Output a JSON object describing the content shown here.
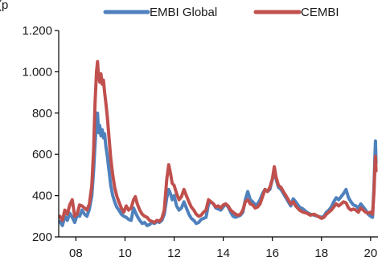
{
  "chart_data": {
    "type": "line",
    "title": "",
    "xlabel": "",
    "ylabel": "",
    "unit_label_fragment": "(p",
    "grid": false,
    "legend_position": "top",
    "xlim": [
      2007.3,
      2020.3
    ],
    "ylim": [
      200,
      1200
    ],
    "x_ticks": [
      {
        "value": 2008,
        "label": "08"
      },
      {
        "value": 2010,
        "label": "10"
      },
      {
        "value": 2012,
        "label": "12"
      },
      {
        "value": 2014,
        "label": "14"
      },
      {
        "value": 2016,
        "label": "16"
      },
      {
        "value": 2018,
        "label": "18"
      },
      {
        "value": 2020,
        "label": "20"
      }
    ],
    "y_ticks": [
      {
        "value": 200,
        "label": "200"
      },
      {
        "value": 400,
        "label": "400"
      },
      {
        "value": 600,
        "label": "600"
      },
      {
        "value": 800,
        "label": "800"
      },
      {
        "value": 1000,
        "label": "1.000"
      },
      {
        "value": 1200,
        "label": "1.200"
      }
    ],
    "series": [
      {
        "name": "EMBI Global",
        "color": "#4f81bd",
        "points": [
          [
            2007.35,
            275
          ],
          [
            2007.45,
            255
          ],
          [
            2007.55,
            300
          ],
          [
            2007.65,
            280
          ],
          [
            2007.75,
            315
          ],
          [
            2007.85,
            295
          ],
          [
            2007.95,
            270
          ],
          [
            2008.05,
            305
          ],
          [
            2008.15,
            300
          ],
          [
            2008.25,
            330
          ],
          [
            2008.35,
            310
          ],
          [
            2008.45,
            300
          ],
          [
            2008.55,
            335
          ],
          [
            2008.65,
            400
          ],
          [
            2008.72,
            520
          ],
          [
            2008.78,
            650
          ],
          [
            2008.84,
            760
          ],
          [
            2008.88,
            800
          ],
          [
            2008.92,
            705
          ],
          [
            2008.97,
            740
          ],
          [
            2009.02,
            690
          ],
          [
            2009.07,
            720
          ],
          [
            2009.12,
            680
          ],
          [
            2009.17,
            700
          ],
          [
            2009.22,
            640
          ],
          [
            2009.28,
            590
          ],
          [
            2009.35,
            520
          ],
          [
            2009.42,
            450
          ],
          [
            2009.5,
            400
          ],
          [
            2009.58,
            370
          ],
          [
            2009.66,
            345
          ],
          [
            2009.75,
            330
          ],
          [
            2009.85,
            310
          ],
          [
            2009.95,
            300
          ],
          [
            2010.05,
            295
          ],
          [
            2010.15,
            285
          ],
          [
            2010.25,
            280
          ],
          [
            2010.35,
            340
          ],
          [
            2010.42,
            320
          ],
          [
            2010.5,
            300
          ],
          [
            2010.6,
            280
          ],
          [
            2010.7,
            265
          ],
          [
            2010.8,
            270
          ],
          [
            2010.9,
            255
          ],
          [
            2011.0,
            260
          ],
          [
            2011.1,
            270
          ],
          [
            2011.2,
            265
          ],
          [
            2011.3,
            275
          ],
          [
            2011.4,
            270
          ],
          [
            2011.5,
            280
          ],
          [
            2011.6,
            310
          ],
          [
            2011.7,
            390
          ],
          [
            2011.78,
            430
          ],
          [
            2011.85,
            410
          ],
          [
            2011.92,
            380
          ],
          [
            2012.0,
            400
          ],
          [
            2012.1,
            350
          ],
          [
            2012.2,
            330
          ],
          [
            2012.3,
            340
          ],
          [
            2012.4,
            370
          ],
          [
            2012.5,
            340
          ],
          [
            2012.6,
            310
          ],
          [
            2012.7,
            290
          ],
          [
            2012.8,
            280
          ],
          [
            2012.9,
            265
          ],
          [
            2013.0,
            270
          ],
          [
            2013.1,
            285
          ],
          [
            2013.2,
            290
          ],
          [
            2013.3,
            295
          ],
          [
            2013.4,
            360
          ],
          [
            2013.5,
            370
          ],
          [
            2013.6,
            360
          ],
          [
            2013.7,
            340
          ],
          [
            2013.8,
            335
          ],
          [
            2013.9,
            330
          ],
          [
            2014.0,
            345
          ],
          [
            2014.1,
            360
          ],
          [
            2014.2,
            345
          ],
          [
            2014.3,
            320
          ],
          [
            2014.4,
            300
          ],
          [
            2014.5,
            295
          ],
          [
            2014.6,
            300
          ],
          [
            2014.7,
            305
          ],
          [
            2014.8,
            320
          ],
          [
            2014.9,
            380
          ],
          [
            2015.0,
            420
          ],
          [
            2015.1,
            380
          ],
          [
            2015.2,
            370
          ],
          [
            2015.3,
            355
          ],
          [
            2015.4,
            360
          ],
          [
            2015.5,
            380
          ],
          [
            2015.6,
            410
          ],
          [
            2015.7,
            430
          ],
          [
            2015.8,
            420
          ],
          [
            2015.9,
            430
          ],
          [
            2016.0,
            480
          ],
          [
            2016.08,
            520
          ],
          [
            2016.15,
            480
          ],
          [
            2016.25,
            440
          ],
          [
            2016.35,
            430
          ],
          [
            2016.45,
            410
          ],
          [
            2016.55,
            390
          ],
          [
            2016.65,
            370
          ],
          [
            2016.75,
            350
          ],
          [
            2016.85,
            385
          ],
          [
            2016.95,
            370
          ],
          [
            2017.1,
            345
          ],
          [
            2017.25,
            335
          ],
          [
            2017.4,
            320
          ],
          [
            2017.55,
            310
          ],
          [
            2017.7,
            305
          ],
          [
            2017.85,
            300
          ],
          [
            2018.0,
            295
          ],
          [
            2018.1,
            300
          ],
          [
            2018.2,
            320
          ],
          [
            2018.3,
            330
          ],
          [
            2018.4,
            345
          ],
          [
            2018.5,
            370
          ],
          [
            2018.6,
            390
          ],
          [
            2018.7,
            380
          ],
          [
            2018.8,
            395
          ],
          [
            2018.9,
            410
          ],
          [
            2019.0,
            430
          ],
          [
            2019.1,
            390
          ],
          [
            2019.2,
            370
          ],
          [
            2019.3,
            355
          ],
          [
            2019.4,
            350
          ],
          [
            2019.5,
            340
          ],
          [
            2019.6,
            360
          ],
          [
            2019.7,
            345
          ],
          [
            2019.8,
            330
          ],
          [
            2019.9,
            310
          ],
          [
            2020.0,
            300
          ],
          [
            2020.08,
            295
          ],
          [
            2020.14,
            450
          ],
          [
            2020.18,
            600
          ],
          [
            2020.2,
            665
          ],
          [
            2020.22,
            560
          ]
        ]
      },
      {
        "name": "CEMBI",
        "color": "#c0504d",
        "points": [
          [
            2007.35,
            300
          ],
          [
            2007.45,
            280
          ],
          [
            2007.55,
            330
          ],
          [
            2007.65,
            310
          ],
          [
            2007.75,
            355
          ],
          [
            2007.85,
            380
          ],
          [
            2007.95,
            300
          ],
          [
            2008.05,
            310
          ],
          [
            2008.15,
            355
          ],
          [
            2008.25,
            350
          ],
          [
            2008.35,
            340
          ],
          [
            2008.45,
            330
          ],
          [
            2008.55,
            360
          ],
          [
            2008.65,
            450
          ],
          [
            2008.72,
            620
          ],
          [
            2008.78,
            850
          ],
          [
            2008.84,
            1000
          ],
          [
            2008.88,
            1050
          ],
          [
            2008.92,
            980
          ],
          [
            2008.97,
            950
          ],
          [
            2009.02,
            990
          ],
          [
            2009.07,
            940
          ],
          [
            2009.12,
            960
          ],
          [
            2009.17,
            900
          ],
          [
            2009.22,
            850
          ],
          [
            2009.28,
            780
          ],
          [
            2009.35,
            680
          ],
          [
            2009.42,
            580
          ],
          [
            2009.5,
            500
          ],
          [
            2009.58,
            440
          ],
          [
            2009.66,
            400
          ],
          [
            2009.75,
            370
          ],
          [
            2009.85,
            340
          ],
          [
            2009.95,
            320
          ],
          [
            2010.05,
            350
          ],
          [
            2010.15,
            330
          ],
          [
            2010.25,
            340
          ],
          [
            2010.35,
            380
          ],
          [
            2010.42,
            395
          ],
          [
            2010.5,
            360
          ],
          [
            2010.6,
            330
          ],
          [
            2010.7,
            310
          ],
          [
            2010.8,
            300
          ],
          [
            2010.9,
            295
          ],
          [
            2011.0,
            280
          ],
          [
            2011.1,
            275
          ],
          [
            2011.2,
            270
          ],
          [
            2011.3,
            280
          ],
          [
            2011.4,
            275
          ],
          [
            2011.5,
            290
          ],
          [
            2011.6,
            330
          ],
          [
            2011.7,
            480
          ],
          [
            2011.78,
            550
          ],
          [
            2011.85,
            510
          ],
          [
            2011.92,
            460
          ],
          [
            2012.0,
            450
          ],
          [
            2012.1,
            410
          ],
          [
            2012.2,
            380
          ],
          [
            2012.3,
            395
          ],
          [
            2012.4,
            430
          ],
          [
            2012.5,
            400
          ],
          [
            2012.6,
            370
          ],
          [
            2012.7,
            345
          ],
          [
            2012.8,
            330
          ],
          [
            2012.9,
            310
          ],
          [
            2013.0,
            300
          ],
          [
            2013.1,
            305
          ],
          [
            2013.2,
            320
          ],
          [
            2013.3,
            330
          ],
          [
            2013.4,
            380
          ],
          [
            2013.5,
            370
          ],
          [
            2013.6,
            360
          ],
          [
            2013.7,
            345
          ],
          [
            2013.8,
            350
          ],
          [
            2013.9,
            340
          ],
          [
            2014.0,
            355
          ],
          [
            2014.1,
            360
          ],
          [
            2014.2,
            350
          ],
          [
            2014.3,
            330
          ],
          [
            2014.4,
            320
          ],
          [
            2014.5,
            310
          ],
          [
            2014.6,
            305
          ],
          [
            2014.7,
            310
          ],
          [
            2014.8,
            330
          ],
          [
            2014.9,
            370
          ],
          [
            2015.0,
            380
          ],
          [
            2015.1,
            360
          ],
          [
            2015.2,
            355
          ],
          [
            2015.3,
            340
          ],
          [
            2015.4,
            345
          ],
          [
            2015.5,
            360
          ],
          [
            2015.6,
            395
          ],
          [
            2015.7,
            430
          ],
          [
            2015.8,
            420
          ],
          [
            2015.9,
            440
          ],
          [
            2016.0,
            480
          ],
          [
            2016.08,
            540
          ],
          [
            2016.15,
            490
          ],
          [
            2016.25,
            450
          ],
          [
            2016.35,
            440
          ],
          [
            2016.45,
            420
          ],
          [
            2016.55,
            400
          ],
          [
            2016.65,
            380
          ],
          [
            2016.75,
            360
          ],
          [
            2016.85,
            370
          ],
          [
            2016.95,
            350
          ],
          [
            2017.1,
            330
          ],
          [
            2017.25,
            320
          ],
          [
            2017.4,
            315
          ],
          [
            2017.55,
            305
          ],
          [
            2017.7,
            310
          ],
          [
            2017.85,
            300
          ],
          [
            2018.0,
            290
          ],
          [
            2018.1,
            295
          ],
          [
            2018.2,
            310
          ],
          [
            2018.3,
            320
          ],
          [
            2018.4,
            330
          ],
          [
            2018.5,
            345
          ],
          [
            2018.6,
            360
          ],
          [
            2018.7,
            350
          ],
          [
            2018.8,
            360
          ],
          [
            2018.9,
            370
          ],
          [
            2019.0,
            365
          ],
          [
            2019.1,
            340
          ],
          [
            2019.2,
            330
          ],
          [
            2019.3,
            335
          ],
          [
            2019.4,
            330
          ],
          [
            2019.5,
            320
          ],
          [
            2019.6,
            340
          ],
          [
            2019.7,
            330
          ],
          [
            2019.8,
            320
          ],
          [
            2019.9,
            315
          ],
          [
            2020.0,
            320
          ],
          [
            2020.08,
            310
          ],
          [
            2020.14,
            420
          ],
          [
            2020.18,
            550
          ],
          [
            2020.2,
            590
          ],
          [
            2020.22,
            520
          ]
        ]
      }
    ]
  }
}
